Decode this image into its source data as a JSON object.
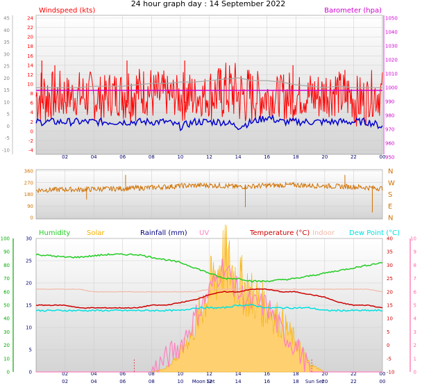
{
  "title": "24 hour graph day : 14 September 2022",
  "colors": {
    "background": "#ffffff",
    "panel_top": "#ffffff",
    "panel_bottom": "#d4d4d4",
    "grid": "#c8c8c8",
    "wind": "#ff0000",
    "wind_line": "#0000cc",
    "barometer": "#d000d0",
    "barometer_grey": "#a8a8a8",
    "direction": "#d07000",
    "humidity": "#22cc22",
    "solar": "#f5b000",
    "solar_light": "#ffd070",
    "rainfall": "#000080",
    "uv": "#ff80c0",
    "temperature": "#cc0000",
    "indoor": "#f0b8a8",
    "dewpoint": "#00e0e0",
    "sunmoon_marker": "#cc3333",
    "axis_left_green": "#00aa00",
    "axis_right_pink": "#ff66aa"
  },
  "time_ticks": [
    "02",
    "04",
    "06",
    "08",
    "10",
    "12",
    "14",
    "16",
    "18",
    "20",
    "22",
    "00"
  ],
  "chart_data": [
    {
      "type": "line",
      "panel": "wind_barometer",
      "legend": [
        "Windspeed (kts)",
        "Barometer (hpa)"
      ],
      "x": [
        0,
        1,
        2,
        3,
        4,
        5,
        6,
        7,
        8,
        9,
        10,
        11,
        12,
        13,
        14,
        15,
        16,
        17,
        18,
        19,
        20,
        21,
        22,
        23,
        24
      ],
      "y_left_range": [
        -4,
        24
      ],
      "y_left_ticks": [
        24,
        22,
        20,
        18,
        16,
        14,
        12,
        10,
        8,
        6,
        4,
        2,
        0,
        -2,
        -4
      ],
      "y_outer_ticks": [
        45,
        40,
        35,
        30,
        25,
        20,
        15,
        10,
        5,
        0,
        -5,
        -10
      ],
      "y_right_range": [
        955,
        1050
      ],
      "y_right_ticks": [
        1050,
        1040,
        1030,
        1020,
        1010,
        1000,
        990,
        980,
        970,
        960,
        950
      ],
      "series": [
        {
          "name": "Windspeed (kts)",
          "values": [
            9,
            7,
            8,
            7,
            7,
            8,
            8,
            9,
            6,
            8,
            7,
            8,
            8,
            7,
            6,
            7,
            8,
            7,
            8,
            9,
            8,
            7,
            7,
            8,
            6
          ],
          "min_values": [
            1,
            2,
            3,
            2,
            2,
            3,
            2,
            3,
            2,
            3,
            2,
            3,
            2,
            2,
            1,
            2,
            3,
            2,
            3,
            2,
            3,
            2,
            1,
            3,
            2
          ],
          "max_values": [
            14,
            13,
            12,
            13,
            12,
            13,
            15,
            14,
            13,
            12,
            13,
            12,
            14,
            15,
            14,
            13,
            12,
            13,
            12,
            13,
            14,
            13,
            12,
            13,
            12
          ]
        },
        {
          "name": "Windspeed average",
          "values": [
            2,
            2,
            2,
            2,
            2,
            2,
            2,
            2,
            2,
            2,
            1,
            2,
            2,
            2,
            1,
            2,
            3,
            2,
            2,
            2,
            2,
            2,
            2,
            2,
            1
          ]
        },
        {
          "name": "Barometer (hpa)",
          "values": [
            998,
            998,
            998,
            998,
            998,
            998,
            998,
            998,
            998,
            998,
            998,
            998,
            998,
            998,
            998,
            998,
            998,
            998,
            998,
            998,
            998,
            998,
            998,
            998,
            998
          ]
        },
        {
          "name": "Barometer trace (grey)",
          "values": [
            1000,
            1000,
            1000,
            1000,
            1001,
            1001,
            1001,
            1002,
            1003,
            1003,
            1004,
            1004,
            1005,
            1006,
            1007,
            1005,
            1005,
            1004,
            1002,
            1001,
            1000,
            1001,
            1000,
            1000,
            1000
          ]
        }
      ]
    },
    {
      "type": "line",
      "panel": "wind_direction",
      "x": [
        0,
        1,
        2,
        3,
        4,
        5,
        6,
        7,
        8,
        9,
        10,
        11,
        12,
        13,
        14,
        15,
        16,
        17,
        18,
        19,
        20,
        21,
        22,
        23,
        24
      ],
      "y_left_range": [
        0,
        360
      ],
      "y_left_ticks": [
        360,
        270,
        180,
        90,
        0
      ],
      "y_right_labels": [
        "N",
        "W",
        "S",
        "E",
        "N"
      ],
      "series": [
        {
          "name": "Wind direction",
          "values": [
            212,
            215,
            218,
            216,
            220,
            222,
            225,
            228,
            232,
            238,
            245,
            248,
            250,
            245,
            238,
            242,
            248,
            250,
            252,
            248,
            245,
            240,
            238,
            232,
            225
          ]
        }
      ]
    },
    {
      "type": "line",
      "panel": "temperature_humidity",
      "legend": [
        "Humidity",
        "Solar",
        "Rainfall (mm)",
        "UV",
        "Temperature (°C)",
        "Indoor",
        "Dew Point (°C)"
      ],
      "x": [
        0,
        1,
        2,
        3,
        4,
        5,
        6,
        7,
        8,
        9,
        10,
        11,
        12,
        13,
        14,
        15,
        16,
        17,
        18,
        19,
        20,
        21,
        22,
        23,
        24
      ],
      "y_outer_ticks": [
        100,
        90,
        80,
        70,
        60,
        50,
        40,
        30,
        20,
        10,
        0
      ],
      "y_left_range": [
        0,
        30
      ],
      "y_left_ticks": [
        30,
        25,
        20,
        15,
        10,
        5,
        0
      ],
      "y_right_range": [
        -10,
        40
      ],
      "y_right_ticks": [
        40,
        35,
        30,
        25,
        20,
        15,
        10,
        5,
        0,
        -5,
        -10
      ],
      "y_outer_right_ticks": [
        10,
        9,
        8,
        7,
        6,
        5,
        4,
        3,
        2,
        1,
        0
      ],
      "series": [
        {
          "name": "Humidity",
          "values": [
            88,
            87,
            86,
            86,
            87,
            88,
            88,
            88,
            86,
            84,
            82,
            78,
            74,
            70,
            70,
            68,
            68,
            69,
            70,
            72,
            74,
            76,
            78,
            80,
            82
          ]
        },
        {
          "name": "Temperature (°C)",
          "values": [
            15,
            15,
            15,
            14,
            14,
            14,
            14,
            14,
            15,
            15,
            16,
            17,
            19,
            20,
            20,
            21,
            21,
            20,
            20,
            19,
            18,
            16,
            15,
            15,
            14
          ]
        },
        {
          "name": "Indoor",
          "values": [
            21,
            21,
            21,
            21,
            20,
            20,
            20,
            20,
            20,
            20,
            20,
            20,
            21,
            21,
            21,
            21,
            21,
            21,
            21,
            21,
            21,
            21,
            21,
            21,
            20
          ]
        },
        {
          "name": "Dew Point (°C)",
          "values": [
            13,
            13,
            13,
            13,
            13,
            13,
            13,
            13,
            13,
            13,
            13,
            14,
            14,
            14,
            15,
            15,
            14,
            14,
            14,
            14,
            13,
            13,
            13,
            13,
            13
          ]
        },
        {
          "name": "Solar",
          "values": [
            0,
            0,
            0,
            0,
            0,
            0,
            0,
            0,
            0,
            1,
            5,
            12,
            22,
            30,
            24,
            20,
            17,
            13,
            8,
            2,
            0,
            0,
            0,
            0,
            0
          ]
        },
        {
          "name": "UV",
          "values": [
            0,
            0,
            0,
            0,
            0,
            0,
            0,
            0,
            0,
            1,
            2,
            4,
            6,
            8,
            6,
            5,
            5,
            3,
            2,
            0,
            0,
            0,
            0,
            0,
            0
          ]
        }
      ]
    }
  ],
  "markers": {
    "moon_set": "Moon Set",
    "sun_set": "Sun Set"
  }
}
